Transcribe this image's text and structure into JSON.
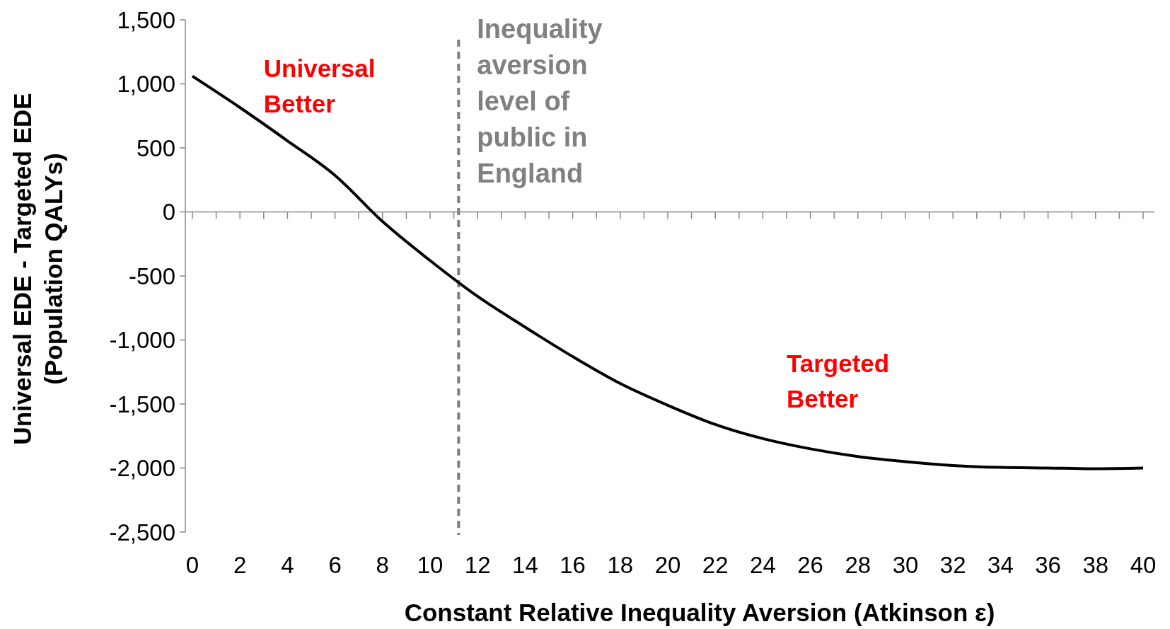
{
  "chart_data": {
    "type": "line",
    "xlabel": "Constant Relative Inequality Aversion (Atkinson ε)",
    "ylabel": "Universal EDE - Targeted EDE (Population QALYs)",
    "x": [
      0,
      2,
      4,
      6,
      8,
      10,
      12,
      14,
      16,
      18,
      20,
      22,
      24,
      26,
      28,
      30,
      32,
      34,
      36,
      38,
      40
    ],
    "series": [
      {
        "color": "#000000",
        "values": [
          1060,
          815,
          555,
          285,
          -75,
          -380,
          -660,
          -900,
          -1130,
          -1340,
          -1510,
          -1660,
          -1770,
          -1850,
          -1910,
          -1950,
          -1980,
          -1995,
          -2000,
          -2005,
          -2000
        ]
      }
    ],
    "xlim": [
      0,
      40
    ],
    "xticks": [
      0,
      {
        "value": 1,
        "label": null
      },
      2,
      {
        "value": 3,
        "label": null
      },
      4,
      {
        "value": 5,
        "label": null
      },
      6,
      {
        "value": 7,
        "label": null
      },
      8,
      {
        "value": 9,
        "label": null
      },
      10,
      {
        "value": 11,
        "label": null
      },
      12,
      {
        "value": 13,
        "label": null
      },
      14,
      {
        "value": 15,
        "label": null
      },
      16,
      {
        "value": 17,
        "label": null
      },
      18,
      {
        "value": 19,
        "label": null
      },
      20,
      {
        "value": 21,
        "label": null
      },
      22,
      {
        "value": 23,
        "label": null
      },
      24,
      {
        "value": 25,
        "label": null
      },
      26,
      {
        "value": 27,
        "label": null
      },
      28,
      {
        "value": 29,
        "label": null
      },
      30,
      {
        "value": 31,
        "label": null
      },
      32,
      {
        "value": 33,
        "label": null
      },
      34,
      {
        "value": 35,
        "label": null
      },
      36,
      {
        "value": 37,
        "label": null
      },
      38,
      {
        "value": 39,
        "label": null
      },
      40
    ],
    "ylim": [
      -2500,
      1500
    ],
    "yticks": [
      {
        "value": 1500,
        "label": "1,500"
      },
      {
        "value": 1000,
        "label": "1,000"
      },
      500,
      0,
      -500,
      {
        "value": -1000,
        "label": "-1,000"
      },
      {
        "value": -1500,
        "label": "-1,500"
      },
      {
        "value": -2000,
        "label": "-2,000"
      },
      {
        "value": -2500,
        "label": "-2,500"
      }
    ],
    "ref_lines": [
      {
        "axis": "x",
        "value": 11.2,
        "label": "Inequality aversion level of public in England",
        "color": "#808080",
        "line_style": "dashed"
      }
    ],
    "annotations": [
      "Universal Better",
      "Targeted Better"
    ],
    "grid": false,
    "marker": "none",
    "line_style": "solid"
  }
}
